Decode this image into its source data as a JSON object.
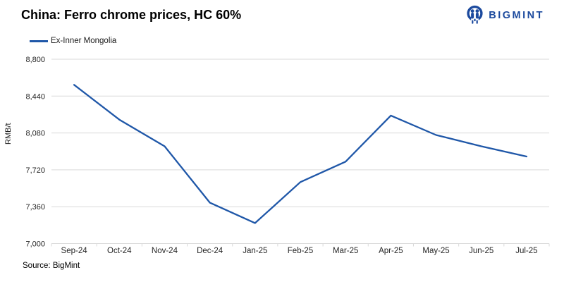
{
  "header": {
    "title": "China: Ferro chrome prices, HC 60%",
    "logo_text": "BIGMINT"
  },
  "legend": {
    "label": "Ex-Inner Mongolia"
  },
  "source": "Source: BigMint",
  "colors": {
    "line": "#1f57a8",
    "logo": "#1c4a9e",
    "grid": "#d9d9d9",
    "tick_text": "#262626"
  },
  "chart_data": {
    "type": "line",
    "title": "China: Ferro chrome prices, HC 60%",
    "categories": [
      "Sep-24",
      "Oct-24",
      "Nov-24",
      "Dec-24",
      "Jan-25",
      "Feb-25",
      "Mar-25",
      "Apr-25",
      "May-25",
      "Jun-25",
      "Jul-25"
    ],
    "series": [
      {
        "name": "Ex-Inner Mongolia",
        "values": [
          8550,
          8210,
          7950,
          7400,
          7200,
          7600,
          7800,
          8250,
          8060,
          7950,
          7850
        ]
      }
    ],
    "xlabel": "",
    "ylabel": "RMB/t",
    "ylim": [
      7000,
      8800
    ],
    "ytick_step": 360,
    "grid": true,
    "legend_position": "top-left"
  }
}
